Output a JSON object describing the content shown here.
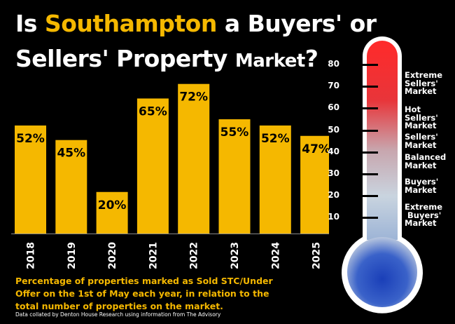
{
  "title": {
    "pre": "Is ",
    "highlight": "Southampton",
    "post": " a Buyers' or",
    "line2_a": "Sellers' Property ",
    "line2_b": "Market",
    "line2_c": "?"
  },
  "caption": "Percentage of properties marked as Sold STC/Under Offer on the 1st of May each year, in relation to the total number of properties on the market.",
  "source": "Data collated by Denton House Research using information from The Advisory",
  "colors": {
    "bar": "#f5b800",
    "accent": "#f5b800",
    "background": "#000000"
  },
  "chart_data": {
    "type": "bar",
    "categories": [
      "2018",
      "2019",
      "2020",
      "2021",
      "2022",
      "2023",
      "2024",
      "2025"
    ],
    "values": [
      52,
      45,
      20,
      65,
      72,
      55,
      52,
      47
    ],
    "value_labels": [
      "52%",
      "45%",
      "20%",
      "65%",
      "72%",
      "55%",
      "52%",
      "47%"
    ],
    "ylim": [
      0,
      80
    ],
    "grid": false,
    "orientation": "vertical",
    "category_label_rotation": "vertical"
  },
  "thermometer": {
    "scale": [
      80,
      70,
      60,
      50,
      40,
      30,
      20,
      10
    ],
    "zones": [
      {
        "label": "Extreme\nSellers'\nMarket"
      },
      {
        "label": "Hot\nSellers'\nMarket"
      },
      {
        "label": "Sellers'\nMarket"
      },
      {
        "label": "Balanced\nMarket"
      },
      {
        "label": "Buyers'\nMarket"
      },
      {
        "label": "Extreme\n Buyers'\nMarket"
      }
    ]
  }
}
